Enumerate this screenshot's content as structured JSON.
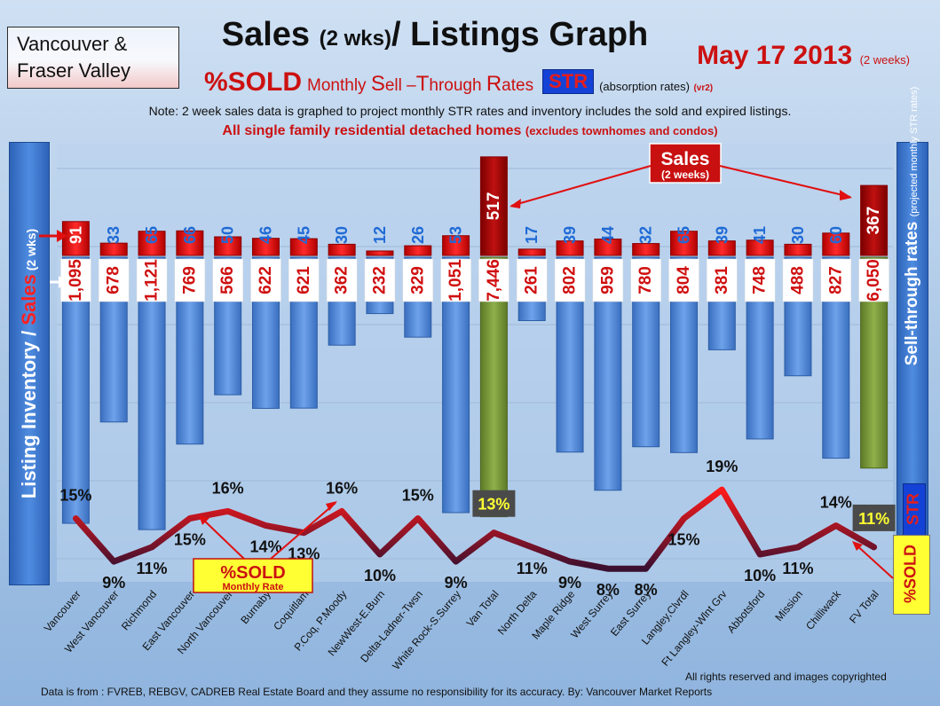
{
  "header": {
    "region_line1": "Vancouver &",
    "region_line2": "Fraser Valley",
    "title_a": "Sales ",
    "title_b": "(2 wks)",
    "title_c": "/ Listings Graph",
    "date": "May 17 2013",
    "date_note": "(2 weeks)",
    "pct_sold": "%SOLD",
    "str_m": "Monthly ",
    "str_s": "S",
    "str_ell": "ell –",
    "str_t": "T",
    "str_hrough": "hrough ",
    "str_r": "R",
    "str_ates": "ates",
    "str_badge": "STR",
    "str_note": "(absorption rates)",
    "str_vr": "(vr2)",
    "note": "Note: 2 week sales data is graphed to project monthly STR rates and inventory includes the sold and expired listings.",
    "homes_a": "All single family residential detached homes ",
    "homes_b": "(excludes townhomes and condos)"
  },
  "left_banner": {
    "a": "Listing Inventory ",
    "b": "/ ",
    "c": "Sales",
    "d": " (2 wks)"
  },
  "right_banner": {
    "a": "Sell-through rates ",
    "b": "(projected monthly STR rates)"
  },
  "side_badges": {
    "str": "STR",
    "sold": "%SOLD"
  },
  "annotations": {
    "sales_a": "Sales",
    "sales_b": "(2 weeks)",
    "sold_a": "%SOLD",
    "sold_b": "Monthly Rate"
  },
  "footer": {
    "rights": "All rights reserved and  images copyrighted",
    "source": "Data is  from : FVREB, REBGV, CADREB Real Estate Board and they assume no responsibility  for its accuracy. By: Vancouver Market Reports"
  },
  "colors": {
    "sales": "#e01010",
    "inventory": "#4a86d6",
    "total_inventory": "#7a9a3a",
    "str_line": "#a01020",
    "label_box": "#ffffff"
  },
  "chart_data": {
    "type": "bar",
    "categories": [
      "Vancouver",
      "West Vancouver",
      "Richmond",
      "East Vancouver",
      "North Vancouver",
      "Burnaby",
      "Coquitlam",
      "P.Coq, P.Moody",
      "NewWest-E.Burn",
      "Delta-Ladner-Twsn",
      "White Rock-S.Surrey",
      "Van Total",
      "North Delta",
      "Maple Ridge",
      "West Surrey",
      "East Surrey",
      "Langley,Clvrdl",
      "Ft Langley-Wlnt Grv",
      "Abbotsford",
      "Mission",
      "Chilliwack",
      "FV Total"
    ],
    "series": [
      {
        "name": "Sales",
        "values": [
          91,
          33,
          65,
          66,
          50,
          46,
          45,
          30,
          12,
          26,
          53,
          517,
          17,
          39,
          44,
          32,
          65,
          39,
          41,
          30,
          60,
          367
        ]
      },
      {
        "name": "Listing Inventory",
        "values": [
          1095,
          678,
          1121,
          769,
          566,
          622,
          621,
          362,
          232,
          329,
          1051,
          7446,
          261,
          802,
          959,
          780,
          804,
          381,
          748,
          488,
          827,
          6050
        ]
      },
      {
        "name": "%SOLD Monthly Rate",
        "values": [
          15,
          9,
          11,
          15,
          16,
          14,
          13,
          16,
          10,
          15,
          9,
          13,
          11,
          9,
          8,
          8,
          15,
          19,
          10,
          11,
          14,
          11
        ]
      }
    ],
    "labels": {
      "sales": [
        "91",
        "33",
        "65",
        "66",
        "50",
        "46",
        "45",
        "30",
        "12",
        "26",
        "53",
        "517",
        "17",
        "39",
        "44",
        "32",
        "65",
        "39",
        "41",
        "30",
        "60",
        "367"
      ],
      "inventory": [
        "1,095",
        "678",
        "1,121",
        "769",
        "566",
        "622",
        "621",
        "362",
        "232",
        "329",
        "1,051",
        "7,446",
        "261",
        "802",
        "959",
        "780",
        "804",
        "381",
        "748",
        "488",
        "827",
        "6,050"
      ],
      "str": [
        "15%",
        "9%",
        "11%",
        "15%",
        "16%",
        "14%",
        "13%",
        "16%",
        "10%",
        "15%",
        "9%",
        "13%",
        "11%",
        "9%",
        "8%",
        "8%",
        "15%",
        "19%",
        "10%",
        "11%",
        "14%",
        "11%"
      ]
    },
    "highlight_categories": [
      "Van Total",
      "FV Total"
    ],
    "grid": true
  }
}
